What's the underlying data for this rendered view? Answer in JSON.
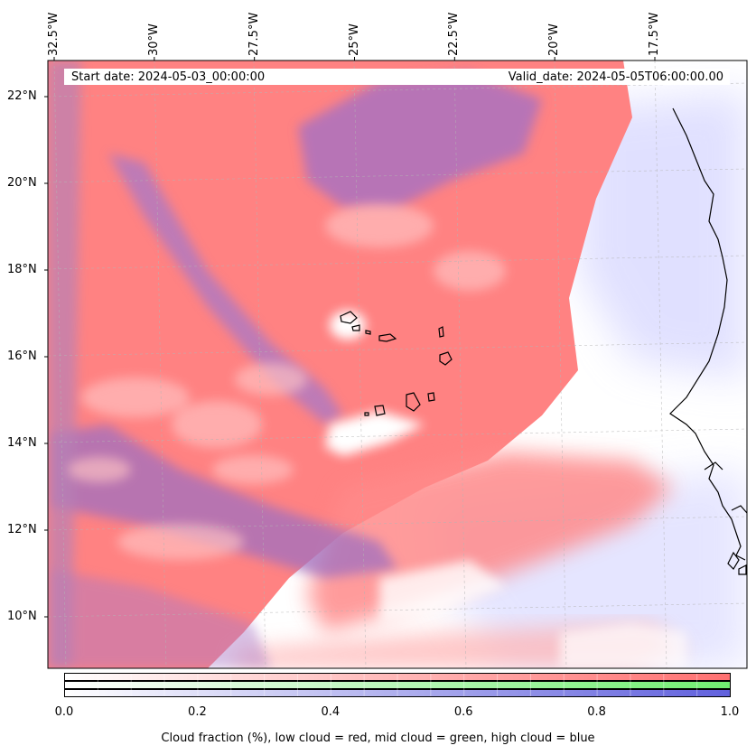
{
  "map": {
    "lon_ticks": [
      {
        "value": -32.5,
        "label": "32.5°W"
      },
      {
        "value": -30.0,
        "label": "30°W"
      },
      {
        "value": -27.5,
        "label": "27.5°W"
      },
      {
        "value": -25.0,
        "label": "25°W"
      },
      {
        "value": -22.5,
        "label": "22.5°W"
      },
      {
        "value": -20.0,
        "label": "20°W"
      },
      {
        "value": -17.5,
        "label": "17.5°W"
      }
    ],
    "lat_ticks": [
      {
        "value": 22,
        "label": "22°N"
      },
      {
        "value": 20,
        "label": "20°N"
      },
      {
        "value": 18,
        "label": "18°N"
      },
      {
        "value": 16,
        "label": "16°N"
      },
      {
        "value": 14,
        "label": "14°N"
      },
      {
        "value": 12,
        "label": "12°N"
      },
      {
        "value": 10,
        "label": "10°N"
      }
    ],
    "start_date": "Start date: 2024-05-03_00:00:00",
    "valid_date": "Valid_date: 2024-05-05T06:00:00.00",
    "layer_colors": {
      "low": "#ff8080",
      "mid": "#80ff80",
      "high": "#8080ee"
    }
  },
  "colorbar": {
    "ticks": [
      "0.0",
      "0.2",
      "0.4",
      "0.6",
      "0.8",
      "1.0"
    ],
    "label": "Cloud fraction (%), low cloud = red, mid cloud = green, high cloud = blue"
  }
}
